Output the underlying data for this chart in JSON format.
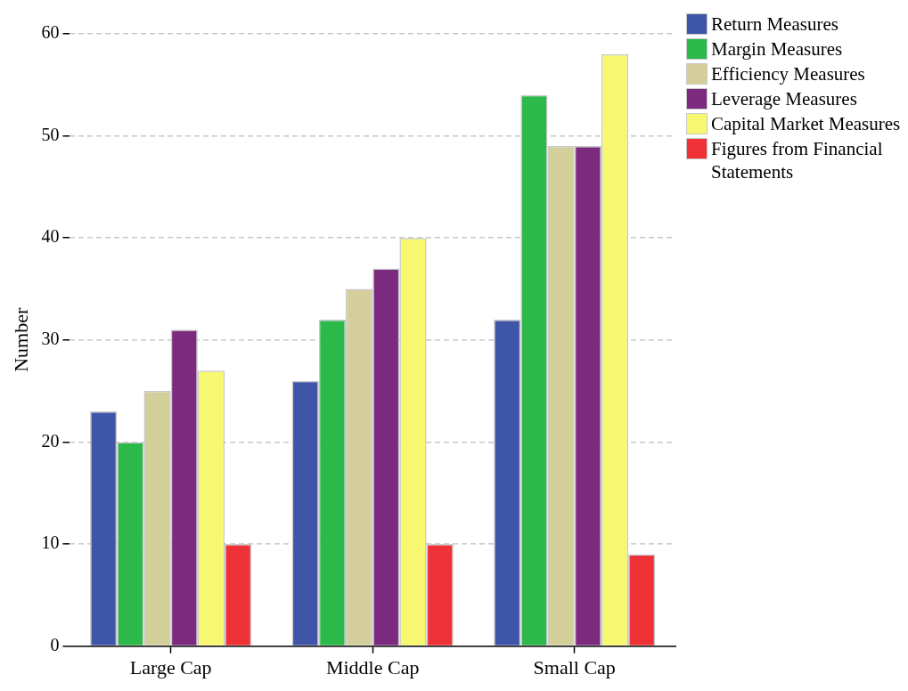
{
  "chart_data": {
    "type": "bar",
    "ylabel": "Number",
    "categories": [
      "Large Cap",
      "Middle Cap",
      "Small Cap"
    ],
    "series": [
      {
        "name": "Return Measures",
        "color": "#3f55a8",
        "values": [
          23,
          26,
          32
        ]
      },
      {
        "name": "Margin Measures",
        "color": "#2db84a",
        "values": [
          20,
          32,
          54
        ]
      },
      {
        "name": "Efficiency Measures",
        "color": "#d4cf9a",
        "values": [
          25,
          35,
          49
        ]
      },
      {
        "name": "Leverage Measures",
        "color": "#7b2a7d",
        "values": [
          31,
          37,
          49
        ]
      },
      {
        "name": "Capital Market Measures",
        "color": "#f8f870",
        "values": [
          27,
          40,
          58
        ]
      },
      {
        "name": "Figures from Financial Statements",
        "color": "#ee3237",
        "values": [
          10,
          10,
          9
        ]
      }
    ],
    "ylim": [
      0,
      60
    ],
    "yticks": [
      0,
      10,
      20,
      30,
      40,
      50,
      60
    ],
    "grid": "y",
    "legend": "top right"
  }
}
